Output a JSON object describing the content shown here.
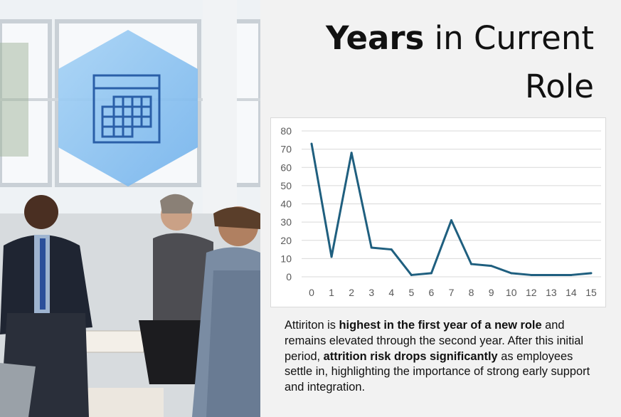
{
  "page": {
    "title_bold": "Years",
    "title_rest": " in Current Role",
    "icon": "calendar-icon",
    "colors": {
      "line": "#1f5f7f",
      "hexagon": "#8cc2ef",
      "icon_stroke": "#2a5fa8",
      "gridline": "#d9d9d9"
    }
  },
  "description": {
    "p1": "Attiriton is ",
    "b1": "highest in the first year of a new role",
    "p2": " and remains elevated through the second year. After this initial period, ",
    "b2": "attrition risk drops significantly",
    "p3": " as employees settle in, highlighting the importance of strong early support and integration."
  },
  "chart_data": {
    "type": "line",
    "categories": [
      "0",
      "1",
      "2",
      "3",
      "4",
      "5",
      "6",
      "7",
      "8",
      "9",
      "10",
      "12",
      "13",
      "14",
      "15"
    ],
    "values": [
      73,
      11,
      68,
      16,
      15,
      1,
      2,
      31,
      7,
      6,
      2,
      1,
      1,
      1,
      2
    ],
    "yticks": [
      0,
      10,
      20,
      30,
      40,
      50,
      60,
      70,
      80
    ],
    "ylim": [
      0,
      80
    ],
    "grid": true,
    "legend": "none",
    "title": "",
    "xlabel": "",
    "ylabel": ""
  }
}
